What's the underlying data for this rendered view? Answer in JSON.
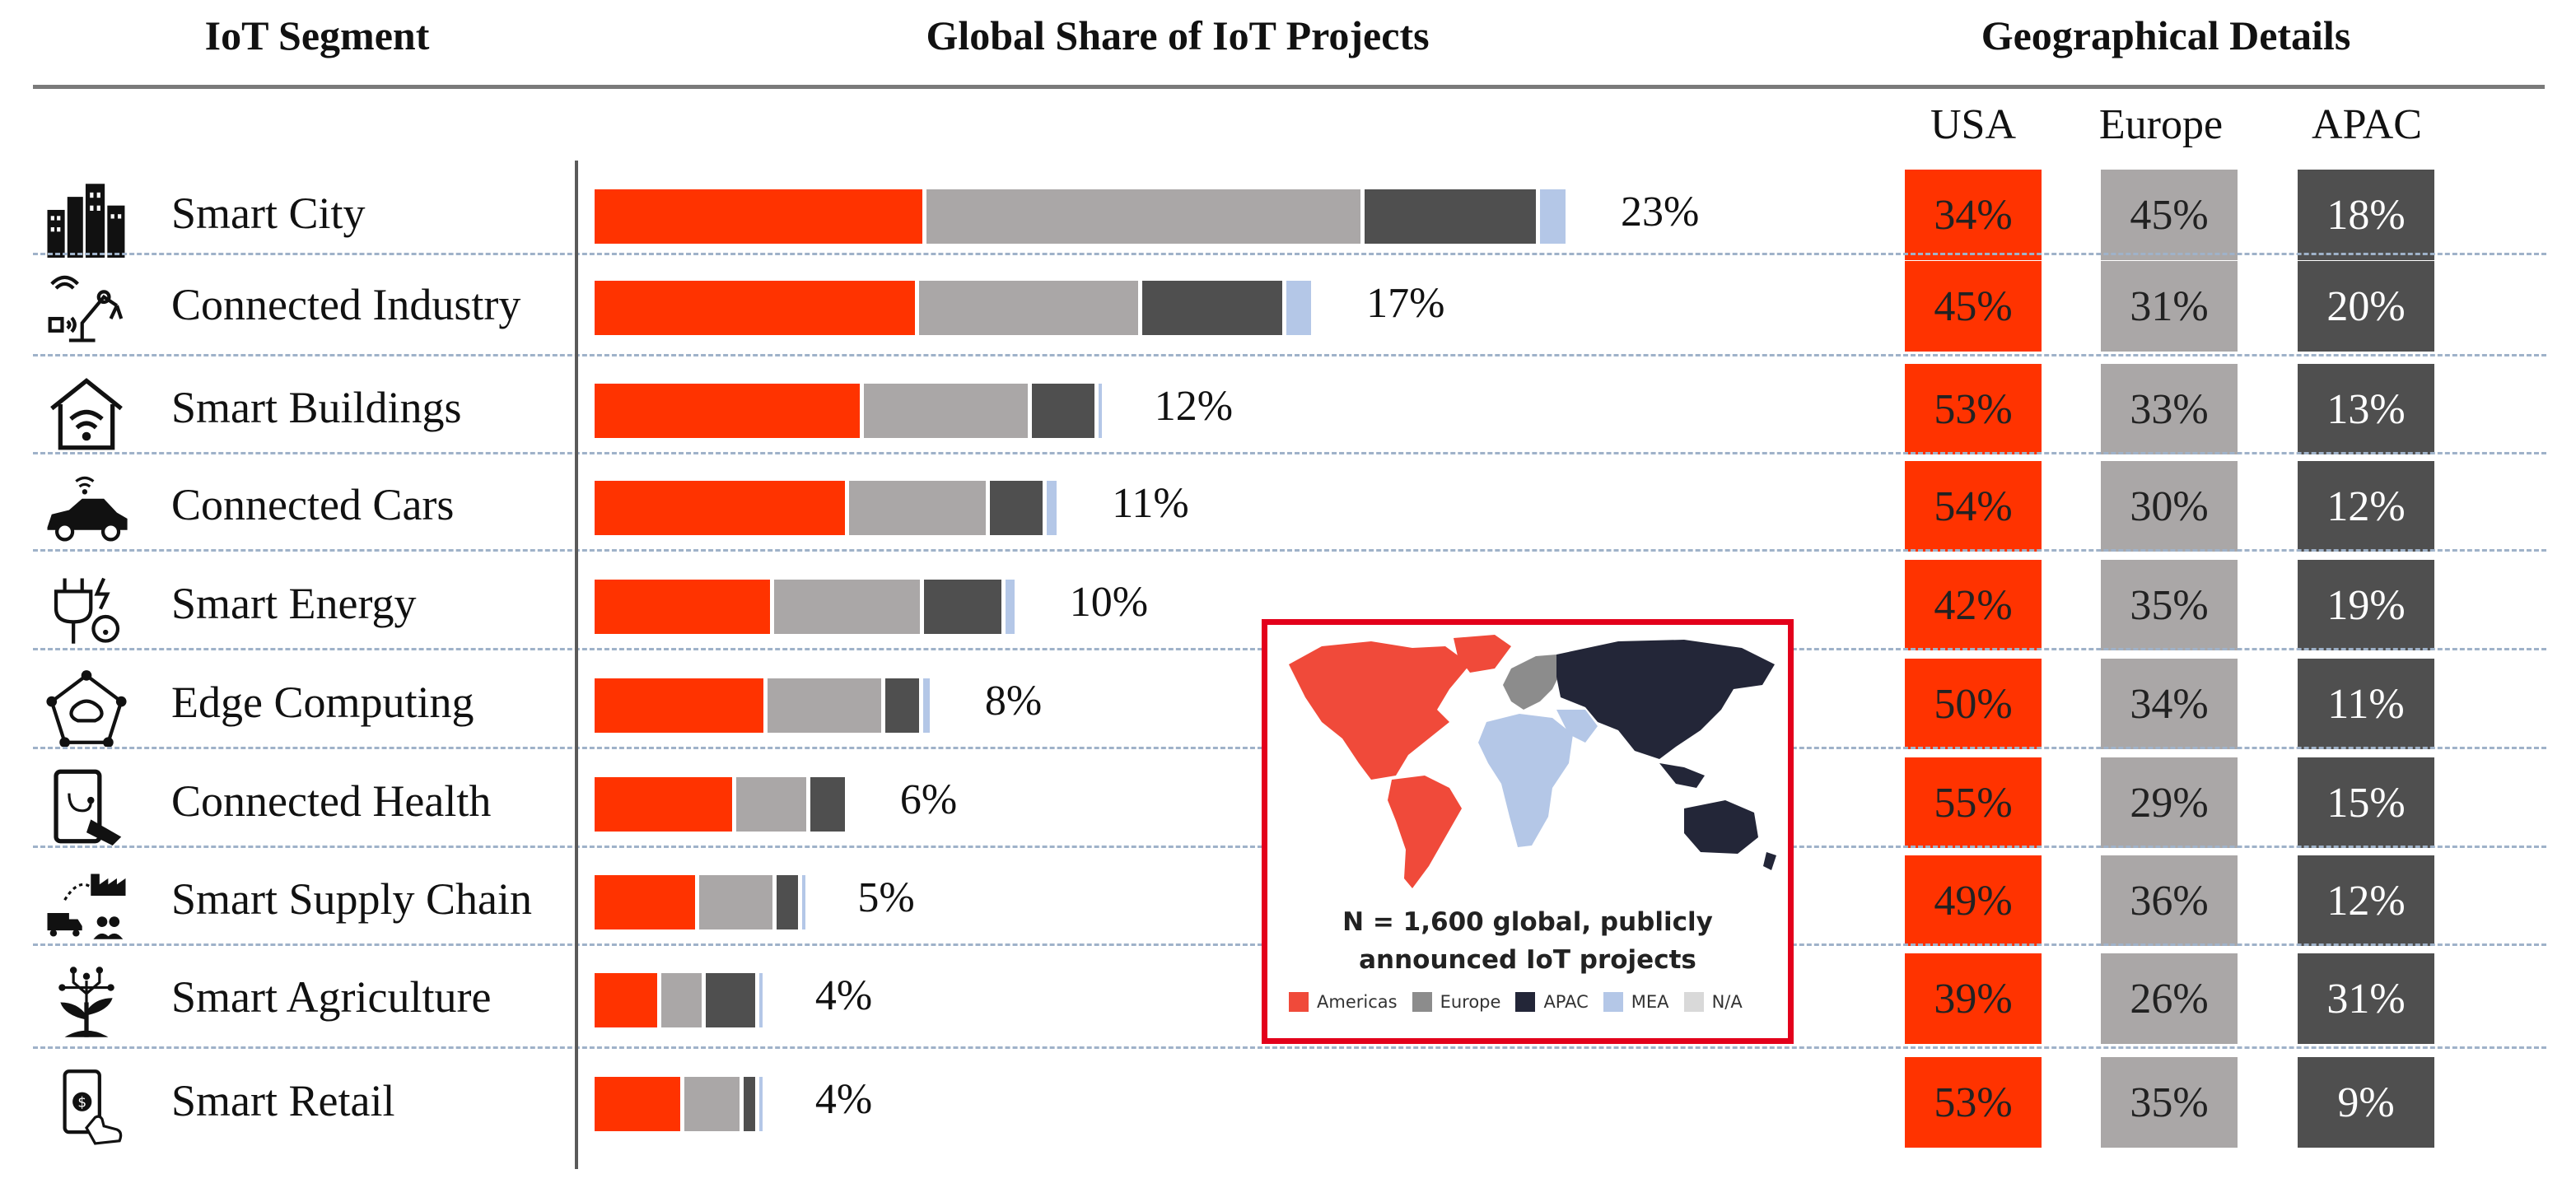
{
  "headers": {
    "segment": "IoT Segment",
    "share": "Global Share of IoT Projects",
    "geo": "Geographical Details"
  },
  "regions": [
    "USA",
    "Europe",
    "APAC"
  ],
  "colors": {
    "americas": "#ff3300",
    "europe": "#aaa7a7",
    "apac": "#4f4f4f",
    "mea": "#b4c7e7",
    "na": "#d9d9d9"
  },
  "chart_data": {
    "type": "bar",
    "stacked": true,
    "orientation": "horizontal",
    "categories": [
      "Smart City",
      "Connected Industry",
      "Smart Buildings",
      "Connected Cars",
      "Smart Energy",
      "Edge Computing",
      "Connected Health",
      "Smart Supply Chain",
      "Smart Agriculture",
      "Smart Retail"
    ],
    "icons": [
      "city-buildings-icon",
      "robot-arm-icon",
      "smart-home-wifi-icon",
      "connected-car-icon",
      "energy-plug-icon",
      "edge-network-icon",
      "tablet-health-icon",
      "supply-chain-icon",
      "agriculture-plant-icon",
      "smartphone-payment-icon"
    ],
    "totals": [
      "23%",
      "17%",
      "12%",
      "11%",
      "10%",
      "8%",
      "6%",
      "5%",
      "4%",
      "4%"
    ],
    "total_values": [
      23,
      17,
      12,
      11,
      10,
      8,
      6,
      5,
      4,
      4
    ],
    "series": [
      {
        "name": "USA",
        "values": [
          "34%",
          "45%",
          "53%",
          "54%",
          "42%",
          "50%",
          "55%",
          "49%",
          "39%",
          "53%"
        ],
        "color": "#ff3300"
      },
      {
        "name": "Europe",
        "values": [
          "45%",
          "31%",
          "33%",
          "30%",
          "35%",
          "34%",
          "29%",
          "36%",
          "26%",
          "35%"
        ],
        "color": "#aaa7a7"
      },
      {
        "name": "APAC",
        "values": [
          "18%",
          "20%",
          "13%",
          "12%",
          "19%",
          "11%",
          "15%",
          "12%",
          "31%",
          "9%"
        ],
        "color": "#4f4f4f"
      }
    ],
    "mea_share": [
      3,
      4,
      1,
      3,
      3,
      3,
      0,
      2,
      3,
      3
    ]
  },
  "map": {
    "title_line1": "N = 1,600 global, publicly",
    "title_line2": "announced IoT projects",
    "legend": [
      {
        "label": "Americas",
        "color": "#f04a3a",
        "icon": "americas-swatch"
      },
      {
        "label": "Europe",
        "color": "#8c8c8c",
        "icon": "europe-swatch"
      },
      {
        "label": "APAC",
        "color": "#232638",
        "icon": "apac-swatch"
      },
      {
        "label": "MEA",
        "color": "#b4c7e7",
        "icon": "mea-swatch"
      },
      {
        "label": "N/A",
        "color": "#d9d9d9",
        "icon": "na-swatch"
      }
    ]
  }
}
